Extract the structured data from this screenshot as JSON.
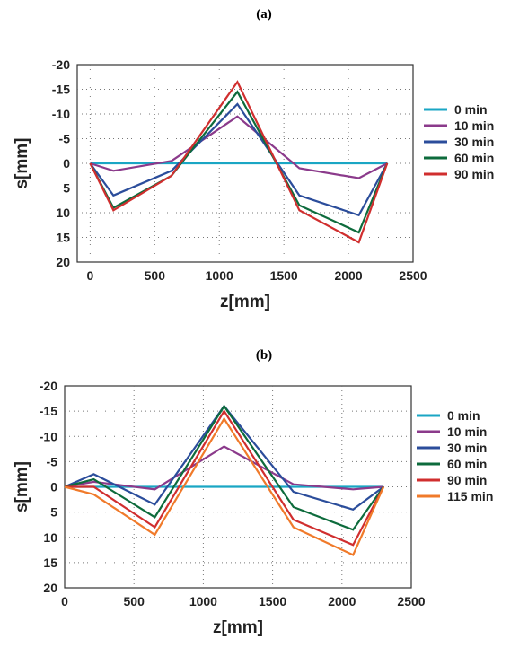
{
  "chart_data": [
    {
      "type": "line",
      "panel_label": "(a)",
      "xlabel": "z[mm]",
      "ylabel": "s[mm]",
      "xlim": [
        -100,
        2500
      ],
      "ylim": [
        -20,
        20
      ],
      "y_inverted": true,
      "x_ticks": [
        "0",
        "500",
        "1000",
        "1500",
        "2000",
        "2500"
      ],
      "y_ticks": [
        "-20",
        "-15",
        "-10",
        "-5",
        "0",
        "5",
        "10",
        "15",
        "20"
      ],
      "grid": "dotted",
      "legend": "right",
      "x": [
        0,
        180,
        630,
        1140,
        1620,
        2080,
        2300
      ],
      "series": [
        {
          "name": "0 min",
          "color": "#1aa6c4",
          "values": [
            0,
            0,
            0,
            0,
            0,
            0,
            0
          ]
        },
        {
          "name": "10 min",
          "color": "#8b3a8b",
          "values": [
            0,
            1.5,
            -0.5,
            -9.5,
            1,
            3,
            0
          ]
        },
        {
          "name": "30 min",
          "color": "#2b4d9b",
          "values": [
            0,
            6.5,
            1.5,
            -12,
            6.5,
            10.5,
            0
          ]
        },
        {
          "name": "60 min",
          "color": "#0d6b3c",
          "values": [
            0,
            9,
            2.5,
            -14.5,
            8.5,
            14,
            0
          ]
        },
        {
          "name": "90 min",
          "color": "#d02e2e",
          "values": [
            0,
            9.5,
            2.5,
            -16.5,
            9.5,
            16,
            0
          ]
        }
      ]
    },
    {
      "type": "line",
      "panel_label": "(b)",
      "xlabel": "z[mm]",
      "ylabel": "s[mm]",
      "xlim": [
        0,
        2500
      ],
      "ylim": [
        -20,
        20
      ],
      "y_inverted": true,
      "x_ticks": [
        "0",
        "500",
        "1000",
        "1500",
        "2000",
        "2500"
      ],
      "y_ticks": [
        "-20",
        "-15",
        "-10",
        "-5",
        "0",
        "5",
        "10",
        "15",
        "20"
      ],
      "grid": "dotted",
      "legend": "right",
      "x": [
        0,
        210,
        650,
        1150,
        1650,
        2080,
        2300
      ],
      "series": [
        {
          "name": "0 min",
          "color": "#1aa6c4",
          "values": [
            0,
            0,
            0,
            0,
            0,
            0,
            0
          ]
        },
        {
          "name": "10 min",
          "color": "#8b3a8b",
          "values": [
            0,
            -1,
            0.5,
            -8,
            -0.5,
            0.5,
            0
          ]
        },
        {
          "name": "30 min",
          "color": "#2b4d9b",
          "values": [
            0,
            -2.5,
            3.5,
            -16,
            1,
            4.5,
            0
          ]
        },
        {
          "name": "60 min",
          "color": "#0d6b3c",
          "values": [
            0,
            -1.5,
            6,
            -16,
            4,
            8.5,
            0
          ]
        },
        {
          "name": "90 min",
          "color": "#d02e2e",
          "values": [
            0,
            0,
            8,
            -15,
            6.5,
            11.5,
            0
          ]
        },
        {
          "name": "115 min",
          "color": "#f07a2a",
          "values": [
            0,
            1.5,
            9.5,
            -13.5,
            8,
            13.5,
            0
          ]
        }
      ]
    }
  ]
}
